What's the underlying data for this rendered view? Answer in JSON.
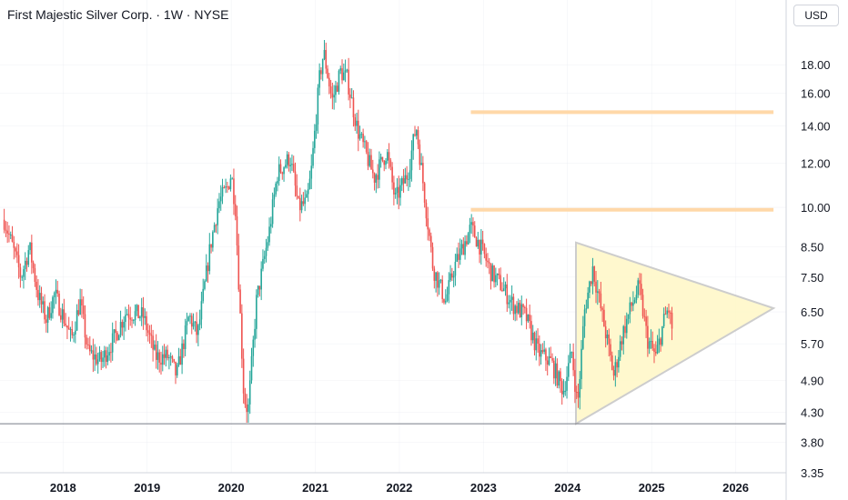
{
  "header": {
    "title": "First Majestic Silver Corp. · 1W · NYSE"
  },
  "price_axis": {
    "currency": "USD"
  },
  "colors": {
    "up": "#26a69a",
    "down": "#ef5350",
    "level_line": "#ffd8a8",
    "triangle_fill": "#fff8c9",
    "triangle_stroke": "#c8c8c8",
    "support_line": "#787b86",
    "grid": "#e0e3eb"
  },
  "chart_data": {
    "type": "candlestick",
    "title": "First Majestic Silver Corp. · 1W · NYSE",
    "interval": "1W",
    "exchange": "NYSE",
    "currency": "USD",
    "y_scale": "log",
    "y_ticks": [
      "18.00",
      "16.00",
      "14.00",
      "12.00",
      "10.00",
      "8.50",
      "7.50",
      "6.50",
      "5.70",
      "4.90",
      "4.30",
      "3.80",
      "3.35"
    ],
    "x_ticks": [
      "2018",
      "2019",
      "2020",
      "2021",
      "2022",
      "2023",
      "2024",
      "2025",
      "2026"
    ],
    "xlim": [
      2017.25,
      2026.6
    ],
    "ylim": [
      3.35,
      23.5
    ],
    "weekly_close_path": [
      [
        2017.3,
        9.5
      ],
      [
        2017.4,
        8.5
      ],
      [
        2017.5,
        7.5
      ],
      [
        2017.6,
        8.5
      ],
      [
        2017.7,
        7.0
      ],
      [
        2017.8,
        6.3
      ],
      [
        2017.9,
        7.0
      ],
      [
        2018.0,
        6.4
      ],
      [
        2018.1,
        5.8
      ],
      [
        2018.2,
        6.8
      ],
      [
        2018.3,
        5.5
      ],
      [
        2018.45,
        5.3
      ],
      [
        2018.6,
        5.8
      ],
      [
        2018.75,
        6.5
      ],
      [
        2018.95,
        6.4
      ],
      [
        2019.1,
        5.4
      ],
      [
        2019.25,
        5.4
      ],
      [
        2019.35,
        5.0
      ],
      [
        2019.5,
        6.4
      ],
      [
        2019.6,
        5.9
      ],
      [
        2019.75,
        8.5
      ],
      [
        2019.85,
        10.2
      ],
      [
        2019.95,
        10.8
      ],
      [
        2020.0,
        11.5
      ],
      [
        2020.05,
        10.0
      ],
      [
        2020.15,
        4.6
      ],
      [
        2020.2,
        4.3
      ],
      [
        2020.3,
        6.8
      ],
      [
        2020.45,
        9.0
      ],
      [
        2020.55,
        11.5
      ],
      [
        2020.7,
        12.3
      ],
      [
        2020.8,
        10.0
      ],
      [
        2020.9,
        10.2
      ],
      [
        2020.95,
        11.5
      ],
      [
        2021.05,
        17.0
      ],
      [
        2021.1,
        19.0
      ],
      [
        2021.2,
        15.5
      ],
      [
        2021.3,
        17.5
      ],
      [
        2021.38,
        17.0
      ],
      [
        2021.5,
        13.8
      ],
      [
        2021.6,
        12.5
      ],
      [
        2021.7,
        11.3
      ],
      [
        2021.85,
        12.6
      ],
      [
        2021.95,
        10.3
      ],
      [
        2022.1,
        11.5
      ],
      [
        2022.2,
        14.0
      ],
      [
        2022.3,
        10.5
      ],
      [
        2022.4,
        7.8
      ],
      [
        2022.55,
        6.8
      ],
      [
        2022.65,
        7.8
      ],
      [
        2022.85,
        9.2
      ],
      [
        2022.95,
        8.6
      ],
      [
        2023.1,
        7.6
      ],
      [
        2023.2,
        7.3
      ],
      [
        2023.35,
        6.7
      ],
      [
        2023.5,
        6.4
      ],
      [
        2023.65,
        5.5
      ],
      [
        2023.8,
        5.3
      ],
      [
        2023.95,
        4.7
      ],
      [
        2024.05,
        5.5
      ],
      [
        2024.12,
        4.4
      ],
      [
        2024.2,
        6.5
      ],
      [
        2024.3,
        7.8
      ],
      [
        2024.45,
        6.0
      ],
      [
        2024.55,
        5.0
      ],
      [
        2024.65,
        5.9
      ],
      [
        2024.75,
        6.6
      ],
      [
        2024.85,
        7.2
      ],
      [
        2024.95,
        5.8
      ],
      [
        2025.05,
        5.4
      ],
      [
        2025.15,
        6.3
      ],
      [
        2025.2,
        6.6
      ],
      [
        2025.25,
        6.0
      ]
    ],
    "annotations": {
      "resistance_levels": [
        {
          "price": 14.8,
          "x_start": 2022.85,
          "x_end": 2026.45
        },
        {
          "price": 9.9,
          "x_start": 2022.85,
          "x_end": 2026.45
        }
      ],
      "support_line": {
        "price": 4.1
      },
      "triangle": {
        "vertices": [
          [
            2024.1,
            8.65
          ],
          [
            2024.1,
            4.1
          ],
          [
            2026.45,
            6.6
          ]
        ]
      }
    }
  }
}
